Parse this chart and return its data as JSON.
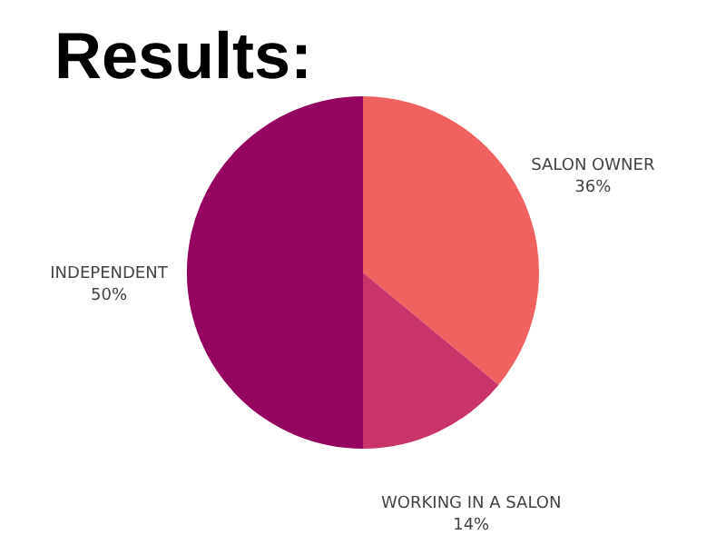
{
  "chart_data": {
    "type": "pie",
    "title": "Results:",
    "categories": [
      "SALON OWNER",
      "WORKING IN A SALON",
      "INDEPENDENT"
    ],
    "values": [
      36,
      14,
      50
    ],
    "value_labels": [
      "36%",
      "14%",
      "50%"
    ],
    "colors": [
      "#f0625f",
      "#c9356a",
      "#940560"
    ]
  }
}
